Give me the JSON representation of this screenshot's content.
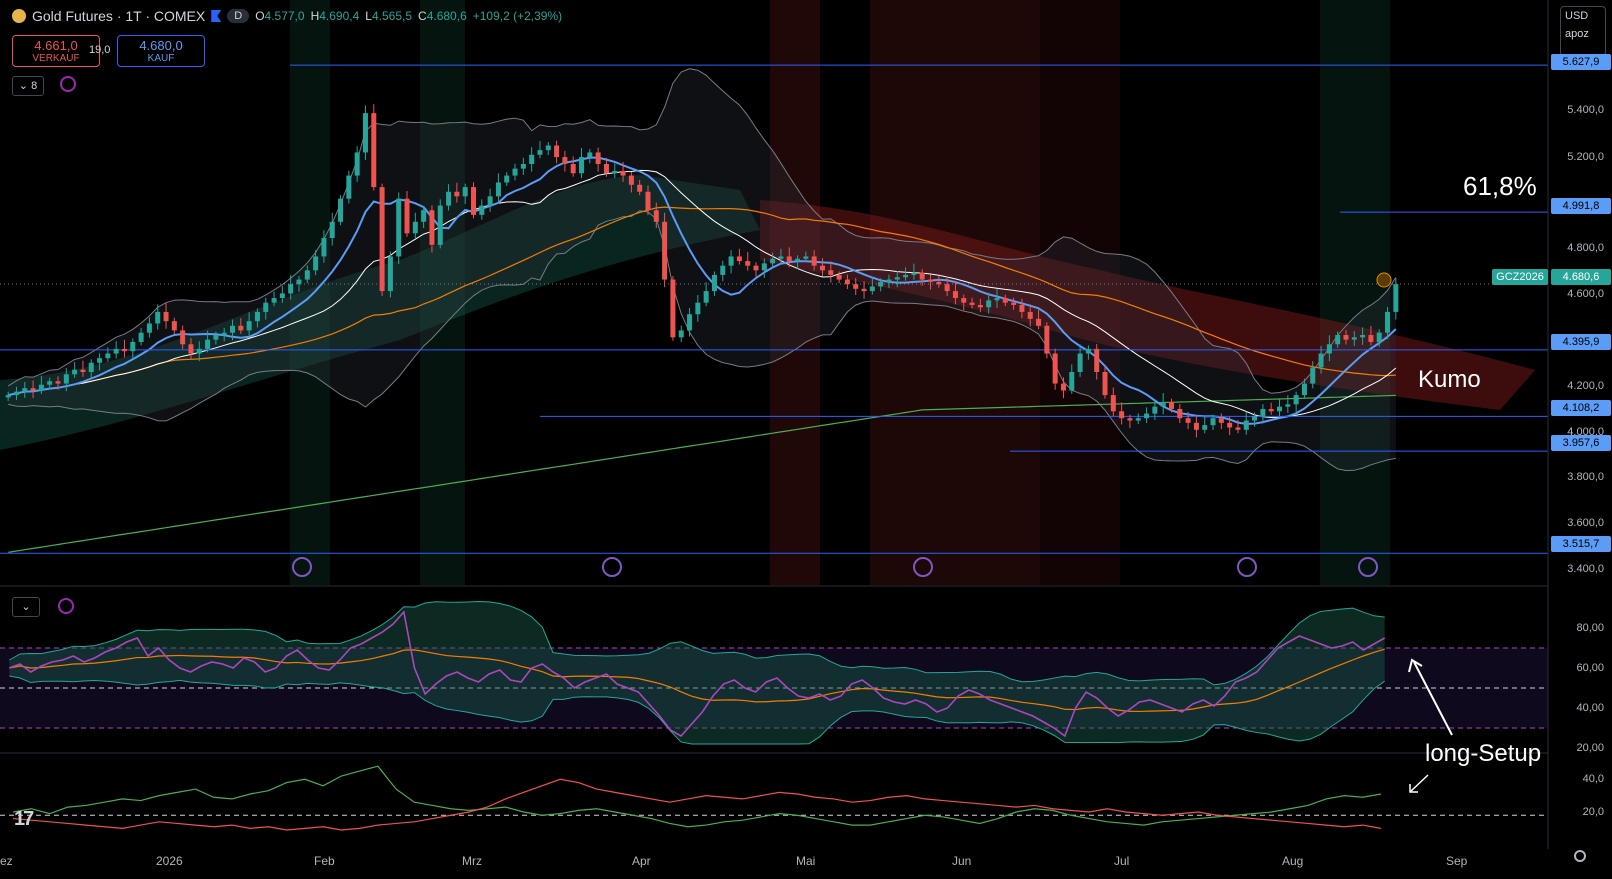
{
  "header": {
    "title": "Gold Futures · 1T · COMEX",
    "badge": "D",
    "open_label": "O",
    "open": "4.577,0",
    "high_label": "H",
    "high": "4.690,4",
    "low_label": "L",
    "low": "4.565,5",
    "close_label": "C",
    "close": "4.680,6",
    "change": "+109,2 (+2,39%)"
  },
  "trade": {
    "sell_price": "4.661,0",
    "sell_label": "VERKAUF",
    "spread": "19,0",
    "buy_price": "4.680,0",
    "buy_label": "KAUF"
  },
  "indicator_count": "8",
  "currency": {
    "value": "USD",
    "unit": "apoz"
  },
  "price_axis": [
    "5.400,0",
    "5.200,0",
    "4.800,0",
    "4.600,0",
    "4.200,0",
    "4.000,0",
    "3.800,0",
    "3.600,0",
    "3.400,0"
  ],
  "price_tags": {
    "top": "5.627,9",
    "fib": "4.991,8",
    "symbol": "GCZ2026",
    "last": "4.680,6",
    "l1": "4.395,9",
    "l2": "4.108,2",
    "l3": "3.957,6",
    "l4": "3.515,7"
  },
  "rsi_axis": [
    "80,00",
    "60,00",
    "40,00",
    "20,00"
  ],
  "dmi_axis": [
    "40,0",
    "20,0"
  ],
  "x_axis": [
    "ez",
    "2026",
    "Feb",
    "Mrz",
    "Apr",
    "Mai",
    "Jun",
    "Jul",
    "Aug",
    "Sep"
  ],
  "annotations": {
    "fib": "61,8%",
    "kumo": "Kumo",
    "setup": "long-Setup"
  },
  "colors": {
    "up": "#26a69a",
    "down": "#ef5350",
    "hline": "#2962ff",
    "rsi": "#ab47bc",
    "tenkan": "#5b9cf6"
  },
  "chart_data": {
    "type": "candlestick",
    "symbol": "GCZ2026",
    "ylim": [
      3400,
      5650
    ],
    "horizontal_levels": [
      5627.9,
      4991.8,
      4395.9,
      4108.2,
      3957.6,
      3515.7
    ],
    "last_close": 4680.6,
    "closes": [
      4200,
      4215,
      4230,
      4220,
      4245,
      4260,
      4250,
      4290,
      4310,
      4300,
      4340,
      4360,
      4380,
      4400,
      4390,
      4430,
      4470,
      4510,
      4560,
      4520,
      4480,
      4420,
      4380,
      4400,
      4440,
      4460,
      4470,
      4500,
      4480,
      4520,
      4560,
      4600,
      4620,
      4640,
      4680,
      4700,
      4740,
      4800,
      4880,
      4950,
      5050,
      5150,
      5250,
      5420,
      5100,
      4650,
      4800,
      5050,
      4900,
      4950,
      5000,
      4850,
      5020,
      5080,
      5060,
      5100,
      4980,
      5020,
      5060,
      5120,
      5150,
      5180,
      5200,
      5240,
      5260,
      5280,
      5230,
      5200,
      5160,
      5230,
      5250,
      5200,
      5160,
      5170,
      5150,
      5110,
      5080,
      5000,
      4950,
      4700,
      4450,
      4480,
      4550,
      4600,
      4650,
      4720,
      4760,
      4800,
      4780,
      4760,
      4740,
      4770,
      4790,
      4800,
      4780,
      4790,
      4800,
      4760,
      4740,
      4720,
      4700,
      4680,
      4660,
      4650,
      4670,
      4690,
      4700,
      4710,
      4720,
      4730,
      4700,
      4690,
      4680,
      4650,
      4620,
      4600,
      4590,
      4580,
      4610,
      4620,
      4600,
      4590,
      4560,
      4530,
      4500,
      4380,
      4250,
      4220,
      4300,
      4380,
      4400,
      4300,
      4200,
      4130,
      4100,
      4090,
      4100,
      4120,
      4150,
      4170,
      4140,
      4100,
      4080,
      4050,
      4070,
      4100,
      4080,
      4060,
      4050,
      4090,
      4110,
      4140,
      4130,
      4150,
      4160,
      4200,
      4250,
      4320,
      4380,
      4420,
      4460,
      4440,
      4450,
      4460,
      4430,
      4470,
      4560,
      4680
    ],
    "rsi": [
      60,
      62,
      58,
      61,
      63,
      64,
      66,
      63,
      65,
      68,
      70,
      73,
      75,
      66,
      70,
      64,
      60,
      58,
      61,
      63,
      62,
      60,
      65,
      63,
      58,
      60,
      66,
      69,
      64,
      60,
      59,
      64,
      70,
      72,
      75,
      78,
      82,
      88,
      60,
      47,
      52,
      56,
      58,
      55,
      53,
      57,
      59,
      54,
      53,
      60,
      62,
      58,
      55,
      50,
      53,
      55,
      57,
      52,
      50,
      48,
      42,
      36,
      29,
      26,
      32,
      38,
      46,
      52,
      54,
      50,
      48,
      53,
      55,
      50,
      46,
      45,
      47,
      44,
      46,
      52,
      54,
      50,
      45,
      43,
      42,
      44,
      42,
      38,
      40,
      46,
      49,
      47,
      44,
      42,
      40,
      38,
      36,
      33,
      30,
      26,
      40,
      48,
      45,
      40,
      36,
      39,
      43,
      44,
      42,
      40,
      38,
      42,
      44,
      41,
      46,
      53,
      55,
      58,
      64,
      70,
      73,
      76,
      74,
      72,
      70,
      71,
      73,
      69,
      72,
      75
    ],
    "rsi_levels": [
      70,
      50,
      30
    ],
    "dmi_plus": [
      22,
      24,
      21,
      25,
      26,
      28,
      30,
      29,
      32,
      34,
      36,
      31,
      30,
      33,
      35,
      40,
      42,
      38,
      44,
      47,
      50,
      36,
      28,
      26,
      24,
      23,
      24,
      25,
      22,
      20,
      21,
      23,
      24,
      22,
      20,
      18,
      15,
      13,
      14,
      16,
      17,
      19,
      21,
      20,
      18,
      16,
      14,
      14,
      16,
      18,
      20,
      19,
      17,
      15,
      18,
      22,
      24,
      23,
      20,
      18,
      16,
      15,
      14,
      16,
      17,
      18,
      19,
      20,
      21,
      22,
      24,
      26,
      30,
      32,
      31,
      33
    ],
    "dmi_minus": [
      18,
      17,
      16,
      15,
      14,
      13,
      12,
      14,
      16,
      15,
      14,
      13,
      14,
      12,
      13,
      11,
      12,
      13,
      11,
      12,
      14,
      15,
      16,
      18,
      20,
      22,
      25,
      30,
      34,
      38,
      42,
      40,
      36,
      34,
      32,
      30,
      28,
      30,
      32,
      31,
      30,
      32,
      34,
      33,
      31,
      30,
      28,
      29,
      31,
      32,
      30,
      29,
      28,
      27,
      26,
      25,
      26,
      24,
      23,
      22,
      24,
      22,
      21,
      20,
      21,
      22,
      20,
      19,
      18,
      17,
      16,
      15,
      14,
      13,
      14,
      12
    ]
  }
}
